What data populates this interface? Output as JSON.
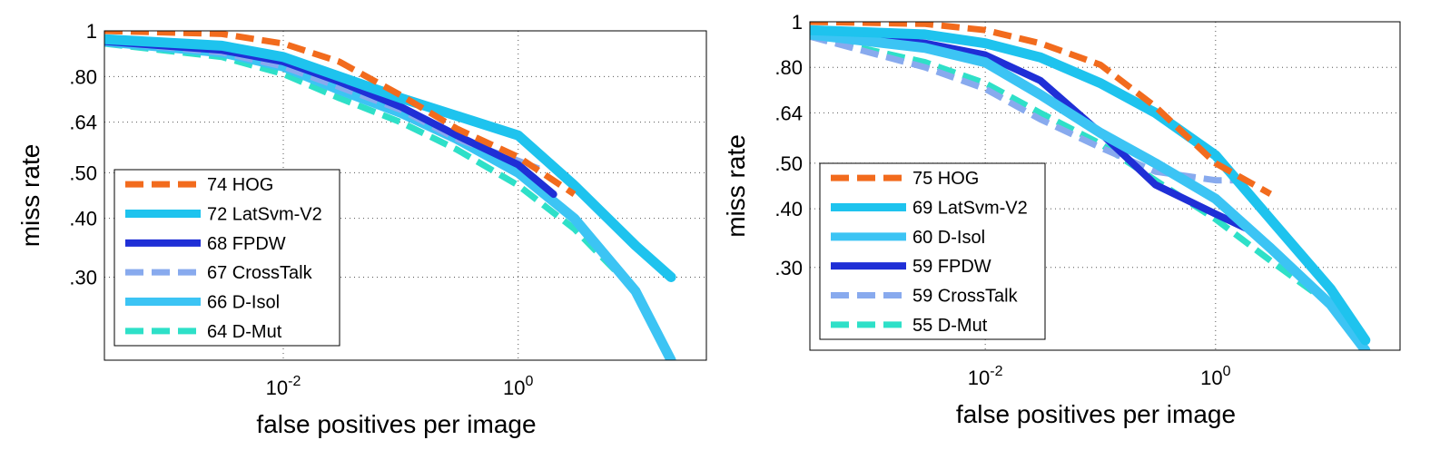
{
  "chart_data": [
    {
      "type": "line",
      "title": "",
      "xlabel": "false positives per image",
      "ylabel": "miss rate",
      "x_scale": "log",
      "y_scale": "log",
      "xlim": [
        0.0003,
        40
      ],
      "ylim": [
        0.2,
        1
      ],
      "x_ticks": [
        0.01,
        1
      ],
      "x_tick_labels": [
        {
          "base": "10",
          "exp": "-2"
        },
        {
          "base": "10",
          "exp": "0"
        }
      ],
      "y_ticks": [
        1,
        0.8,
        0.64,
        0.5,
        0.4,
        0.3
      ],
      "y_tick_labels": [
        "1",
        ".80",
        ".64",
        ".50",
        ".40",
        ".30"
      ],
      "grid": true,
      "legend_position": "bottom-left",
      "series": [
        {
          "name": "74 HOG",
          "color": "#f26b1d",
          "dashed": true,
          "width": 7,
          "x": [
            0.0003,
            0.003,
            0.01,
            0.03,
            0.1,
            0.3,
            1,
            3
          ],
          "y": [
            1.0,
            0.985,
            0.94,
            0.86,
            0.73,
            0.62,
            0.54,
            0.45
          ]
        },
        {
          "name": "72 LatSvm-V2",
          "color": "#1ec3ee",
          "dashed": false,
          "width": 11,
          "x": [
            0.0003,
            0.003,
            0.01,
            0.03,
            0.1,
            0.3,
            1,
            3,
            10,
            20
          ],
          "y": [
            0.96,
            0.93,
            0.88,
            0.8,
            0.72,
            0.66,
            0.6,
            0.47,
            0.35,
            0.3
          ]
        },
        {
          "name": "68 FPDW",
          "color": "#1f2fd6",
          "dashed": false,
          "width": 8,
          "x": [
            0.0003,
            0.003,
            0.01,
            0.03,
            0.1,
            0.3,
            1,
            2
          ],
          "y": [
            0.95,
            0.91,
            0.86,
            0.78,
            0.69,
            0.6,
            0.52,
            0.45
          ]
        },
        {
          "name": "67 CrossTalk",
          "color": "#88aaee",
          "dashed": true,
          "width": 7,
          "x": [
            0.0003,
            0.003,
            0.01,
            0.03,
            0.1,
            0.3,
            1,
            1.5
          ],
          "y": [
            0.95,
            0.9,
            0.84,
            0.76,
            0.68,
            0.59,
            0.53,
            0.51
          ]
        },
        {
          "name": "66 D-Isol",
          "color": "#3cc4f4",
          "dashed": false,
          "width": 11,
          "x": [
            0.0003,
            0.003,
            0.01,
            0.03,
            0.1,
            0.3,
            1,
            3,
            10,
            20
          ],
          "y": [
            0.95,
            0.9,
            0.84,
            0.75,
            0.67,
            0.59,
            0.5,
            0.4,
            0.28,
            0.2
          ]
        },
        {
          "name": "64 D-Mut",
          "color": "#2ee0c8",
          "dashed": true,
          "width": 7,
          "x": [
            0.0003,
            0.003,
            0.01,
            0.03,
            0.1,
            0.3,
            1,
            3,
            10
          ],
          "y": [
            0.94,
            0.88,
            0.81,
            0.72,
            0.64,
            0.56,
            0.47,
            0.38,
            0.28
          ]
        }
      ]
    },
    {
      "type": "line",
      "title": "",
      "xlabel": "false positives per image",
      "ylabel": "miss rate",
      "x_scale": "log",
      "y_scale": "log",
      "xlim": [
        0.0003,
        40
      ],
      "ylim": [
        0.2,
        1
      ],
      "x_ticks": [
        0.01,
        1
      ],
      "x_tick_labels": [
        {
          "base": "10",
          "exp": "-2"
        },
        {
          "base": "10",
          "exp": "0"
        }
      ],
      "y_ticks": [
        1,
        0.8,
        0.64,
        0.5,
        0.4,
        0.3
      ],
      "y_tick_labels": [
        "1",
        ".80",
        ".64",
        ".50",
        ".40",
        ".30"
      ],
      "grid": true,
      "legend_position": "bottom-left",
      "series": [
        {
          "name": "75 HOG",
          "color": "#f26b1d",
          "dashed": true,
          "width": 7,
          "x": [
            0.0003,
            0.003,
            0.01,
            0.03,
            0.1,
            0.3,
            1,
            3
          ],
          "y": [
            1.0,
            0.99,
            0.96,
            0.9,
            0.81,
            0.66,
            0.5,
            0.43
          ]
        },
        {
          "name": "69 LatSvm-V2",
          "color": "#1ec3ee",
          "dashed": false,
          "width": 11,
          "x": [
            0.0003,
            0.003,
            0.01,
            0.03,
            0.1,
            0.3,
            1,
            3,
            10,
            20
          ],
          "y": [
            0.96,
            0.94,
            0.9,
            0.84,
            0.74,
            0.64,
            0.52,
            0.38,
            0.27,
            0.21
          ]
        },
        {
          "name": "60 D-Isol",
          "color": "#3cc4f4",
          "dashed": false,
          "width": 11,
          "x": [
            0.0003,
            0.003,
            0.01,
            0.03,
            0.1,
            0.3,
            1,
            3,
            10,
            20
          ],
          "y": [
            0.94,
            0.88,
            0.82,
            0.7,
            0.58,
            0.5,
            0.42,
            0.33,
            0.25,
            0.2
          ]
        },
        {
          "name": "59 FPDW",
          "color": "#1f2fd6",
          "dashed": false,
          "width": 8,
          "x": [
            0.0003,
            0.003,
            0.01,
            0.03,
            0.1,
            0.3,
            1,
            2
          ],
          "y": [
            0.95,
            0.9,
            0.85,
            0.75,
            0.58,
            0.45,
            0.39,
            0.36
          ]
        },
        {
          "name": "59 CrossTalk",
          "color": "#88aaee",
          "dashed": true,
          "width": 7,
          "x": [
            0.0003,
            0.003,
            0.01,
            0.03,
            0.1,
            0.3,
            1,
            1.5
          ],
          "y": [
            0.93,
            0.8,
            0.72,
            0.62,
            0.54,
            0.48,
            0.46,
            0.46
          ]
        },
        {
          "name": "55 D-Mut",
          "color": "#2ee0c8",
          "dashed": true,
          "width": 7,
          "x": [
            0.0003,
            0.003,
            0.01,
            0.03,
            0.1,
            0.3,
            1,
            3,
            10,
            20
          ],
          "y": [
            0.93,
            0.82,
            0.74,
            0.64,
            0.55,
            0.46,
            0.38,
            0.31,
            0.25,
            0.2
          ]
        }
      ]
    }
  ]
}
